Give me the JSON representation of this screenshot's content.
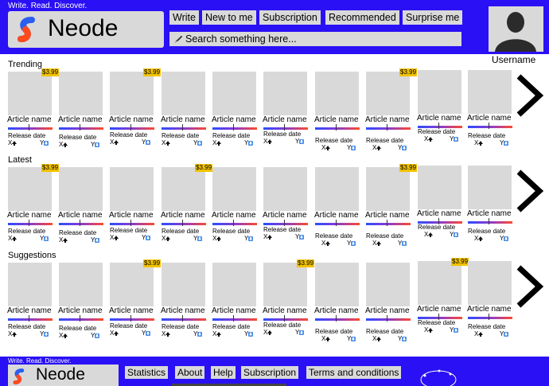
{
  "header": {
    "tagline": "Write. Read. Discover.",
    "brand": "Neode",
    "nav": [
      "Write",
      "New to me",
      "Subscription",
      "Recommended",
      "Surprise me"
    ],
    "search_placeholder": "Search something here...",
    "username": "Username"
  },
  "card_text": {
    "article_name": "Article name",
    "release_date": "Release date",
    "x_label": "X",
    "y_label": "Y",
    "price": "$3.99"
  },
  "sections": [
    {
      "label": "Trending",
      "priced": [
        0,
        2,
        7
      ]
    },
    {
      "label": "Latest",
      "priced": [
        0,
        3,
        7
      ]
    },
    {
      "label": "Suggestions",
      "priced": [
        2,
        5,
        8
      ]
    }
  ],
  "footer": {
    "tagline": "Write. Read. Discover.",
    "brand": "Neode",
    "links": [
      "Statistics",
      "About",
      "Help",
      "Subscription",
      "Terms and conditions"
    ]
  },
  "colors": {
    "brand_blue": "#2a10f5",
    "panel_gray": "#d9d9d9",
    "price_yellow": "#f2c200"
  },
  "icons": [
    "logo-mark-icon",
    "search-icon",
    "avatar-icon",
    "arrow-up-icon",
    "arrow-down-icon",
    "chevron-right-icon"
  ]
}
